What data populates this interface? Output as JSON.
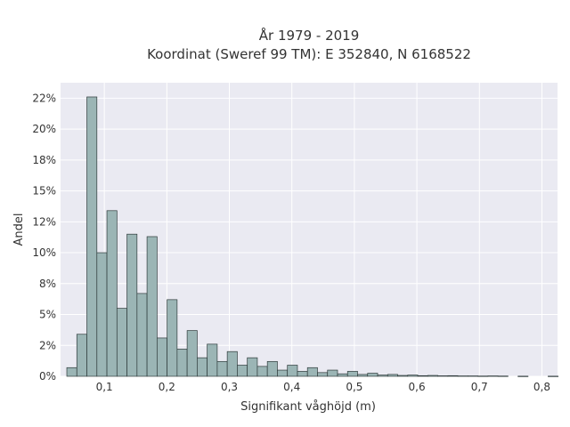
{
  "chart_data": {
    "type": "bar",
    "title_line1": "År 1979 - 2019",
    "title_line2": "Koordinat (Sweref 99 TM): E 352840, N 6168522",
    "xlabel": "Signifikant våghöjd (m)",
    "ylabel": "Andel",
    "xlim": [
      0.03,
      0.825
    ],
    "ylim": [
      0,
      0.2375
    ],
    "x_ticks": [
      0.1,
      0.2,
      0.3,
      0.4,
      0.5,
      0.6,
      0.7,
      0.8
    ],
    "x_tick_labels": [
      "0,1",
      "0,2",
      "0,3",
      "0,4",
      "0,5",
      "0,6",
      "0,7",
      "0,8"
    ],
    "y_ticks": [
      0,
      0.025,
      0.05,
      0.075,
      0.1,
      0.125,
      0.15,
      0.175,
      0.2,
      0.225
    ],
    "y_tick_labels": [
      "0%",
      "2%",
      "5%",
      "8%",
      "10%",
      "12%",
      "15%",
      "18%",
      "20%",
      "22%"
    ],
    "grid": true,
    "bin_start": 0.04,
    "bin_width": 0.01604,
    "values": [
      0.007,
      0.034,
      0.226,
      0.1,
      0.134,
      0.055,
      0.115,
      0.067,
      0.113,
      0.031,
      0.062,
      0.022,
      0.037,
      0.015,
      0.026,
      0.012,
      0.02,
      0.009,
      0.015,
      0.008,
      0.012,
      0.005,
      0.009,
      0.004,
      0.007,
      0.003,
      0.005,
      0.002,
      0.004,
      0.0015,
      0.0025,
      0.001,
      0.0015,
      0.0007,
      0.001,
      0.0005,
      0.0007,
      0.0004,
      0.0005,
      0.0003,
      0.0003,
      0.0002,
      0.0003,
      0.0002,
      0,
      0.0001,
      0,
      0,
      0.0001,
      0
    ]
  }
}
